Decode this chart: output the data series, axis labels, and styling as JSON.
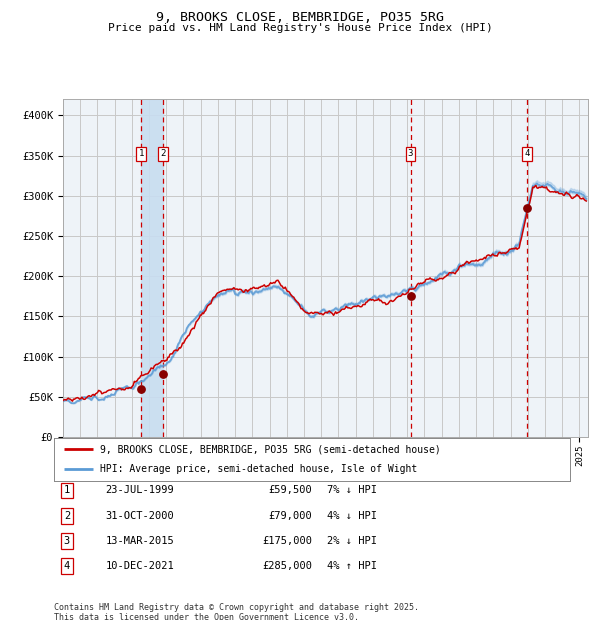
{
  "title": "9, BROOKS CLOSE, BEMBRIDGE, PO35 5RG",
  "subtitle": "Price paid vs. HM Land Registry's House Price Index (HPI)",
  "legend_line1": "9, BROOKS CLOSE, BEMBRIDGE, PO35 5RG (semi-detached house)",
  "legend_line2": "HPI: Average price, semi-detached house, Isle of Wight",
  "footer": "Contains HM Land Registry data © Crown copyright and database right 2025.\nThis data is licensed under the Open Government Licence v3.0.",
  "transactions": [
    {
      "num": 1,
      "date": "23-JUL-1999",
      "price": 59500,
      "pct": "7%",
      "dir": "↓"
    },
    {
      "num": 2,
      "date": "31-OCT-2000",
      "price": 79000,
      "pct": "4%",
      "dir": "↓"
    },
    {
      "num": 3,
      "date": "13-MAR-2015",
      "price": 175000,
      "pct": "2%",
      "dir": "↓"
    },
    {
      "num": 4,
      "date": "10-DEC-2021",
      "price": 285000,
      "pct": "4%",
      "dir": "↑"
    }
  ],
  "transaction_years": [
    1999.55,
    2000.83,
    2015.19,
    2021.94
  ],
  "transaction_prices": [
    59500,
    79000,
    175000,
    285000
  ],
  "ylim": [
    0,
    420000
  ],
  "yticks": [
    0,
    50000,
    100000,
    150000,
    200000,
    250000,
    300000,
    350000,
    400000
  ],
  "ytick_labels": [
    "£0",
    "£50K",
    "£100K",
    "£150K",
    "£200K",
    "£250K",
    "£300K",
    "£350K",
    "£400K"
  ],
  "hpi_line_color": "#5b9bd5",
  "price_line_color": "#cc0000",
  "dot_color": "#880000",
  "vline_color": "#cc0000",
  "vband_color": "#c8ddf0",
  "grid_color": "#c8c8c8",
  "plot_bg_color": "#eef3f8"
}
